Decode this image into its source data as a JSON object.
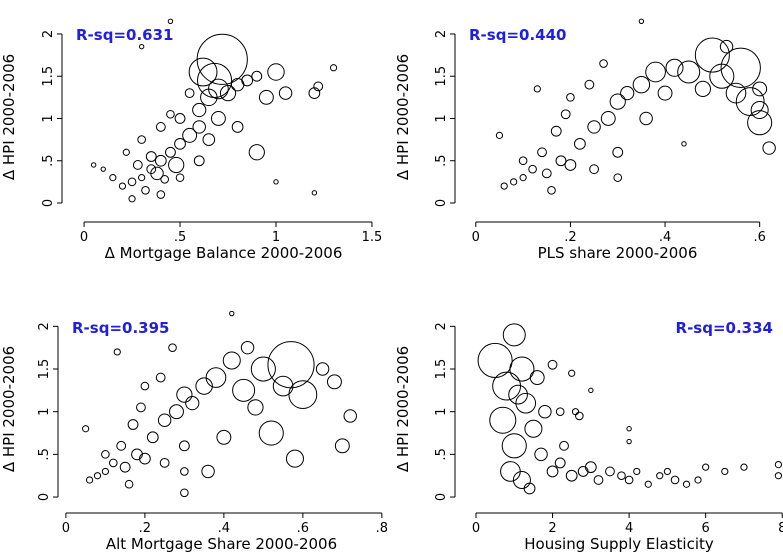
{
  "chart_data": [
    {
      "type": "scatter",
      "annotation": "R-sq=0.631",
      "annotation_corner": "upper left",
      "xlabel": "Δ Mortgage Balance 2000-2006",
      "ylabel": "Δ HPI 2000-2006",
      "xlim": [
        -0.115,
        1.568
      ],
      "ylim": [
        -0.225,
        2.26
      ],
      "xticks": [
        0,
        {
          "value": 0.5,
          "label": ".5"
        },
        1,
        1.5
      ],
      "yticks": [
        0,
        {
          "value": 0.5,
          "label": ".5"
        },
        1,
        1.5,
        2
      ],
      "color": "#000000",
      "x": [
        0.3,
        0.35,
        0.25,
        0.4,
        0.45,
        0.2,
        0.32,
        0.38,
        0.28,
        0.42,
        0.5,
        0.55,
        0.6,
        0.48,
        0.35,
        0.15,
        0.1,
        0.05,
        0.22,
        0.3,
        0.4,
        0.5,
        0.6,
        0.65,
        0.7,
        0.75,
        0.8,
        0.85,
        0.9,
        0.72,
        0.68,
        0.62,
        0.95,
        1.05,
        1.0,
        1.2,
        1.22,
        1.3,
        0.9,
        0.8,
        0.5,
        0.6,
        0.3,
        0.45,
        1.0,
        1.2,
        0.55,
        0.45,
        0.65,
        0.25,
        0.4,
        0.7
      ],
      "y": [
        0.3,
        0.4,
        0.25,
        0.5,
        0.6,
        0.2,
        0.15,
        0.35,
        0.45,
        0.28,
        0.7,
        0.8,
        0.9,
        0.45,
        0.55,
        0.3,
        0.4,
        0.45,
        0.6,
        0.75,
        0.9,
        1.0,
        1.1,
        1.25,
        1.35,
        1.3,
        1.4,
        1.45,
        1.5,
        1.7,
        1.45,
        1.55,
        1.25,
        1.3,
        1.55,
        1.3,
        1.38,
        1.6,
        0.6,
        0.9,
        0.3,
        0.5,
        1.85,
        2.15,
        0.25,
        0.12,
        1.3,
        1.05,
        0.75,
        0.05,
        0.1,
        1.0
      ],
      "sizes": [
        2,
        4,
        3,
        6,
        5,
        2,
        3,
        8,
        4,
        3,
        6,
        10,
        8,
        12,
        5,
        2,
        1,
        1,
        2,
        3,
        4,
        5,
        9,
        14,
        20,
        12,
        8,
        6,
        5,
        130,
        60,
        40,
        10,
        8,
        14,
        6,
        4,
        2,
        12,
        6,
        3,
        5,
        1,
        1,
        1,
        1,
        4,
        3,
        7,
        2,
        3,
        10
      ]
    },
    {
      "type": "scatter",
      "annotation": "R-sq=0.440",
      "annotation_corner": "upper left",
      "xlabel": "PLS share 2000-2006",
      "ylabel": "Δ HPI 2000-2006",
      "xlim": [
        -0.044,
        0.643
      ],
      "ylim": [
        -0.225,
        2.26
      ],
      "xticks": [
        0,
        {
          "value": 0.2,
          "label": ".2"
        },
        {
          "value": 0.4,
          "label": ".4"
        },
        {
          "value": 0.6,
          "label": ".6"
        }
      ],
      "yticks": [
        0,
        {
          "value": 0.5,
          "label": ".5"
        },
        1,
        1.5,
        2
      ],
      "color": "#000000",
      "x": [
        0.1,
        0.12,
        0.15,
        0.08,
        0.18,
        0.14,
        0.2,
        0.1,
        0.06,
        0.16,
        0.22,
        0.25,
        0.28,
        0.3,
        0.32,
        0.35,
        0.38,
        0.42,
        0.45,
        0.5,
        0.52,
        0.55,
        0.56,
        0.58,
        0.6,
        0.62,
        0.6,
        0.48,
        0.4,
        0.36,
        0.3,
        0.25,
        0.2,
        0.19,
        0.13,
        0.27,
        0.35,
        0.3,
        0.05,
        0.24,
        0.44,
        0.53,
        0.6,
        0.17
      ],
      "y": [
        0.3,
        0.4,
        0.35,
        0.25,
        0.5,
        0.6,
        0.45,
        0.5,
        0.2,
        0.15,
        0.7,
        0.9,
        1.0,
        1.2,
        1.3,
        1.4,
        1.55,
        1.6,
        1.55,
        1.75,
        1.5,
        1.3,
        1.6,
        1.2,
        0.95,
        0.65,
        1.35,
        1.35,
        1.3,
        1.0,
        0.6,
        0.4,
        1.25,
        1.05,
        1.35,
        1.65,
        2.15,
        0.3,
        0.8,
        1.4,
        0.7,
        1.85,
        1.1,
        0.85
      ],
      "sizes": [
        2,
        3,
        4,
        2,
        5,
        4,
        6,
        3,
        2,
        3,
        6,
        8,
        10,
        12,
        9,
        14,
        20,
        15,
        25,
        60,
        30,
        20,
        80,
        40,
        30,
        8,
        10,
        12,
        10,
        8,
        5,
        4,
        3,
        4,
        2,
        3,
        1,
        3,
        2,
        4,
        1,
        8,
        15,
        5
      ]
    },
    {
      "type": "scatter",
      "annotation": "R-sq=0.395",
      "annotation_corner": "upper left",
      "xlabel": "Alt Mortgage Share 2000-2006",
      "ylabel": "Δ HPI 2000-2006",
      "xlim": [
        -0.02,
        0.808
      ],
      "ylim": [
        -0.187,
        2.25
      ],
      "xticks": [
        0,
        {
          "value": 0.2,
          "label": ".2"
        },
        {
          "value": 0.4,
          "label": ".4"
        },
        {
          "value": 0.6,
          "label": ".6"
        },
        {
          "value": 0.8,
          "label": ".8"
        }
      ],
      "yticks": [
        0,
        {
          "value": 0.5,
          "label": ".5"
        },
        1,
        1.5,
        2
      ],
      "color": "#000000",
      "x": [
        0.1,
        0.12,
        0.15,
        0.08,
        0.18,
        0.14,
        0.2,
        0.1,
        0.06,
        0.16,
        0.22,
        0.25,
        0.28,
        0.3,
        0.32,
        0.35,
        0.38,
        0.42,
        0.45,
        0.5,
        0.55,
        0.57,
        0.6,
        0.52,
        0.58,
        0.7,
        0.68,
        0.48,
        0.4,
        0.36,
        0.3,
        0.25,
        0.2,
        0.19,
        0.13,
        0.27,
        0.42,
        0.3,
        0.05,
        0.24,
        0.65,
        0.72,
        0.46,
        0.17,
        0.3
      ],
      "y": [
        0.3,
        0.4,
        0.35,
        0.25,
        0.5,
        0.6,
        0.45,
        0.5,
        0.2,
        0.15,
        0.7,
        0.9,
        1.0,
        1.2,
        1.1,
        1.3,
        1.4,
        1.6,
        1.25,
        1.5,
        1.3,
        1.55,
        1.2,
        0.75,
        0.45,
        0.6,
        1.35,
        1.05,
        0.7,
        0.3,
        0.6,
        0.4,
        1.3,
        1.05,
        1.7,
        1.75,
        2.15,
        0.3,
        0.8,
        1.4,
        1.5,
        0.95,
        1.75,
        0.85,
        0.05
      ],
      "sizes": [
        2,
        3,
        5,
        2,
        6,
        4,
        6,
        3,
        2,
        3,
        6,
        8,
        10,
        12,
        9,
        14,
        20,
        15,
        25,
        30,
        20,
        110,
        40,
        30,
        15,
        10,
        10,
        12,
        10,
        8,
        5,
        4,
        3,
        4,
        2,
        3,
        1,
        3,
        2,
        4,
        8,
        8,
        8,
        5,
        3
      ]
    },
    {
      "type": "scatter",
      "annotation": "R-sq=0.334",
      "annotation_corner": "upper right",
      "xlabel": "Housing Supply Elasticity",
      "ylabel": "Δ HPI 2000-2006",
      "xlim": [
        -0.548,
        8.02
      ],
      "ylim": [
        -0.187,
        2.25
      ],
      "xticks": [
        0,
        2,
        4,
        6,
        8
      ],
      "yticks": [
        0,
        {
          "value": 0.5,
          "label": ".5"
        },
        1,
        1.5,
        2
      ],
      "color": "#000000",
      "x": [
        0.5,
        1.0,
        0.8,
        1.2,
        0.7,
        1.0,
        1.3,
        1.5,
        0.9,
        1.2,
        1.6,
        1.8,
        1.7,
        2.0,
        2.2,
        2.5,
        2.8,
        3.0,
        3.2,
        3.5,
        3.8,
        4.0,
        4.2,
        4.5,
        4.8,
        5.0,
        5.2,
        5.5,
        6.0,
        6.5,
        7.0,
        7.9,
        7.9,
        4.0,
        4.0,
        2.5,
        2.2,
        2.7,
        2.0,
        1.4,
        2.3,
        3.0,
        2.6,
        5.8,
        1.1
      ],
      "y": [
        1.6,
        1.9,
        1.3,
        1.5,
        0.9,
        0.6,
        1.1,
        0.8,
        0.3,
        0.2,
        1.4,
        1.0,
        0.5,
        0.3,
        0.4,
        0.25,
        0.3,
        0.35,
        0.2,
        0.3,
        0.25,
        0.2,
        0.3,
        0.15,
        0.25,
        0.3,
        0.2,
        0.15,
        0.35,
        0.3,
        0.35,
        0.25,
        0.38,
        0.8,
        0.65,
        1.45,
        1.0,
        0.95,
        1.55,
        0.1,
        0.6,
        1.25,
        1.0,
        0.2,
        1.2
      ],
      "sizes": [
        60,
        25,
        40,
        30,
        35,
        30,
        20,
        15,
        20,
        15,
        10,
        8,
        8,
        6,
        5,
        6,
        5,
        6,
        4,
        4,
        3,
        3,
        2,
        2,
        2,
        2,
        3,
        2,
        2,
        2,
        2,
        2,
        2,
        1,
        1,
        2,
        3,
        3,
        4,
        6,
        4,
        1,
        2,
        2,
        18
      ]
    }
  ]
}
